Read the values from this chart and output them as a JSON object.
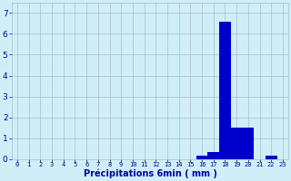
{
  "categories": [
    0,
    1,
    2,
    3,
    4,
    5,
    6,
    7,
    8,
    9,
    10,
    11,
    12,
    13,
    14,
    15,
    16,
    17,
    18,
    19,
    20,
    21,
    22,
    23
  ],
  "values": [
    0,
    0,
    0,
    0,
    0,
    0,
    0,
    0,
    0,
    0,
    0,
    0,
    0,
    0,
    0,
    0,
    0.15,
    0.35,
    6.6,
    1.5,
    1.5,
    0,
    0.15,
    0
  ],
  "bar_color": "#0000cc",
  "bg_color": "#d0eef8",
  "grid_color": "#aabbcc",
  "xlabel": "Précipitations 6min ( mm )",
  "xlabel_color": "#0000aa",
  "tick_color": "#0000aa",
  "ylim": [
    0,
    7.5
  ],
  "yticks": [
    0,
    1,
    2,
    3,
    4,
    5,
    6,
    7
  ],
  "figsize": [
    3.2,
    2.0
  ],
  "dpi": 100
}
